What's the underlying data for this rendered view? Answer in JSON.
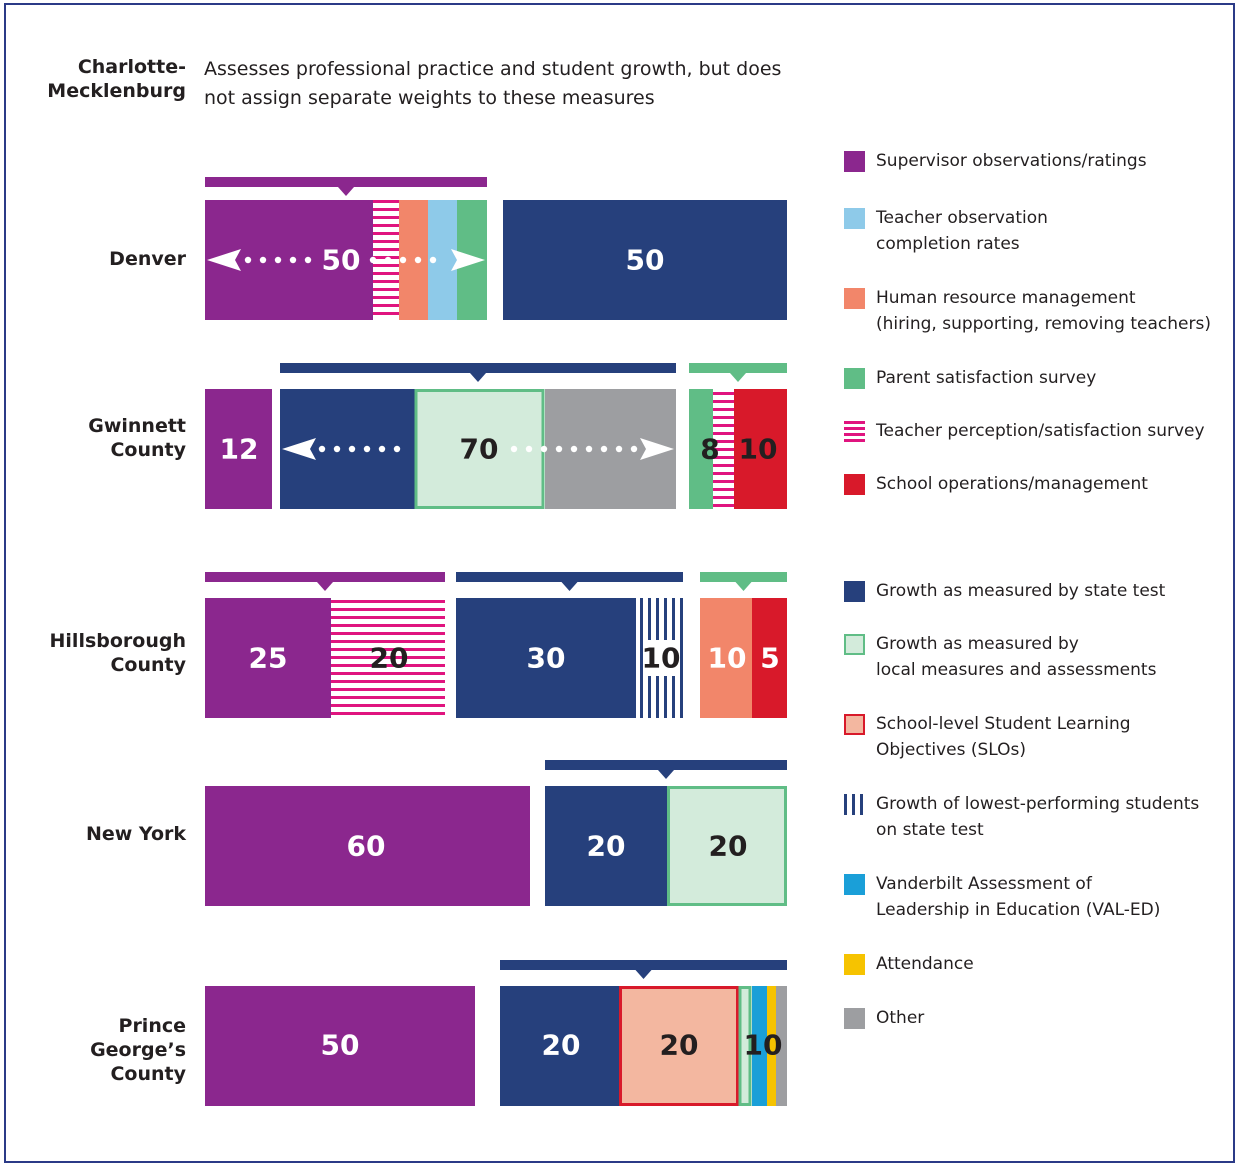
{
  "chart_data": {
    "type": "bar",
    "title": "",
    "colors": {
      "supervisor": "#8b278e",
      "teacher_obs": "#8ecae9",
      "hr": "#f2866a",
      "parent": "#60bd86",
      "teacher_survey": "#e0147f",
      "operations": "#d8192a",
      "growth_state": "#26407c",
      "growth_local": "#d3ebdb",
      "slo": "#f3b7a0",
      "lowest": "#26407c",
      "valed": "#1a9fd8",
      "attendance": "#f6c300",
      "other": "#9d9ea1"
    },
    "charlotte": {
      "label": "Charlotte-\nMecklenburg",
      "description": "Assesses professional practice and student growth, but does not assign separate weights to these measures"
    },
    "rows": [
      {
        "district": "Denver",
        "segments": [
          {
            "measure": "Supervisor observations/ratings",
            "value": 50,
            "label": "50",
            "group": "practice"
          },
          {
            "measure": "Teacher perception/satisfaction survey",
            "value": null,
            "group": "practice"
          },
          {
            "measure": "Human resource management",
            "value": null,
            "group": "practice"
          },
          {
            "measure": "Teacher observation completion rates",
            "value": null,
            "group": "practice"
          },
          {
            "measure": "Parent satisfaction survey",
            "value": null,
            "group": "practice"
          },
          {
            "measure": "Growth as measured by state test",
            "value": 50,
            "label": "50",
            "group": "growth"
          }
        ]
      },
      {
        "district": "Gwinnett County",
        "segments": [
          {
            "measure": "Supervisor observations/ratings",
            "value": 12,
            "label": "12"
          },
          {
            "measure": "Growth as measured by state test",
            "value": null,
            "group": "growth"
          },
          {
            "measure": "Growth as measured by local measures and assessments",
            "value": 70,
            "label": "70",
            "group": "growth"
          },
          {
            "measure": "Other",
            "value": null,
            "group": "growth"
          },
          {
            "measure": "Parent satisfaction survey",
            "value": 8,
            "label": "8",
            "group": "survey"
          },
          {
            "measure": "Teacher perception/satisfaction survey",
            "value": null,
            "group": "survey"
          },
          {
            "measure": "School operations/management",
            "value": 10,
            "label": "10"
          }
        ]
      },
      {
        "district": "Hillsborough County",
        "segments": [
          {
            "measure": "Supervisor observations/ratings",
            "value": 25,
            "label": "25",
            "group": "practice"
          },
          {
            "measure": "Teacher perception/satisfaction survey",
            "value": 20,
            "label": "20",
            "group": "practice"
          },
          {
            "measure": "Growth as measured by state test",
            "value": 30,
            "label": "30",
            "group": "growth"
          },
          {
            "measure": "Growth of lowest-performing students on state test",
            "value": 10,
            "label": "10",
            "group": "growth"
          },
          {
            "measure": "Human resource management",
            "value": 10,
            "label": "10",
            "group": "other"
          },
          {
            "measure": "School operations/management",
            "value": 5,
            "label": "5",
            "group": "other"
          }
        ]
      },
      {
        "district": "New York",
        "segments": [
          {
            "measure": "Supervisor observations/ratings",
            "value": 60,
            "label": "60"
          },
          {
            "measure": "Growth as measured by state test",
            "value": 20,
            "label": "20",
            "group": "growth"
          },
          {
            "measure": "Growth as measured by local measures and assessments",
            "value": 20,
            "label": "20",
            "group": "growth"
          }
        ]
      },
      {
        "district": "Prince George's County",
        "segments": [
          {
            "measure": "Supervisor observations/ratings",
            "value": 50,
            "label": "50"
          },
          {
            "measure": "Growth as measured by state test",
            "value": 20,
            "label": "20",
            "group": "growth"
          },
          {
            "measure": "School-level Student Learning Objectives (SLOs)",
            "value": 20,
            "label": "20",
            "group": "growth"
          },
          {
            "measure": "Growth as measured by local measures and assessments",
            "value": null,
            "group": "growth"
          },
          {
            "measure": "Vanderbilt Assessment of Leadership in Education (VAL-ED)",
            "value": null,
            "group": "growth"
          },
          {
            "measure": "Attendance",
            "value": null,
            "group": "growth"
          },
          {
            "measure": "Other",
            "value": 10,
            "label": "10",
            "group": "growth"
          }
        ]
      }
    ],
    "legend": [
      {
        "key": "supervisor",
        "text": "Supervisor observations/ratings"
      },
      {
        "key": "teacher_obs",
        "text": "Teacher observation\ncompletion rates"
      },
      {
        "key": "hr",
        "text": "Human resource management\n(hiring, supporting, removing teachers)"
      },
      {
        "key": "parent",
        "text": "Parent satisfaction survey"
      },
      {
        "key": "teacher_survey",
        "text": "Teacher perception/satisfaction survey"
      },
      {
        "key": "operations",
        "text": "School operations/management"
      },
      {
        "key": "growth_state",
        "text": "Growth as measured by state test"
      },
      {
        "key": "growth_local",
        "text": "Growth as measured by\nlocal measures and assessments"
      },
      {
        "key": "slo",
        "text": "School-level Student Learning\nObjectives (SLOs)"
      },
      {
        "key": "lowest",
        "text": "Growth of lowest-performing students\non state test"
      },
      {
        "key": "valed",
        "text": "Vanderbilt Assessment of\nLeadership in Education (VAL-ED)"
      },
      {
        "key": "attendance",
        "text": "Attendance"
      },
      {
        "key": "other",
        "text": "Other"
      }
    ],
    "labels": {
      "denver": "Denver",
      "gwinnett": "Gwinnett\nCounty",
      "hillsborough": "Hillsborough\nCounty",
      "newyork": "New York",
      "pg": "Prince\nGeorge’s\nCounty"
    }
  }
}
